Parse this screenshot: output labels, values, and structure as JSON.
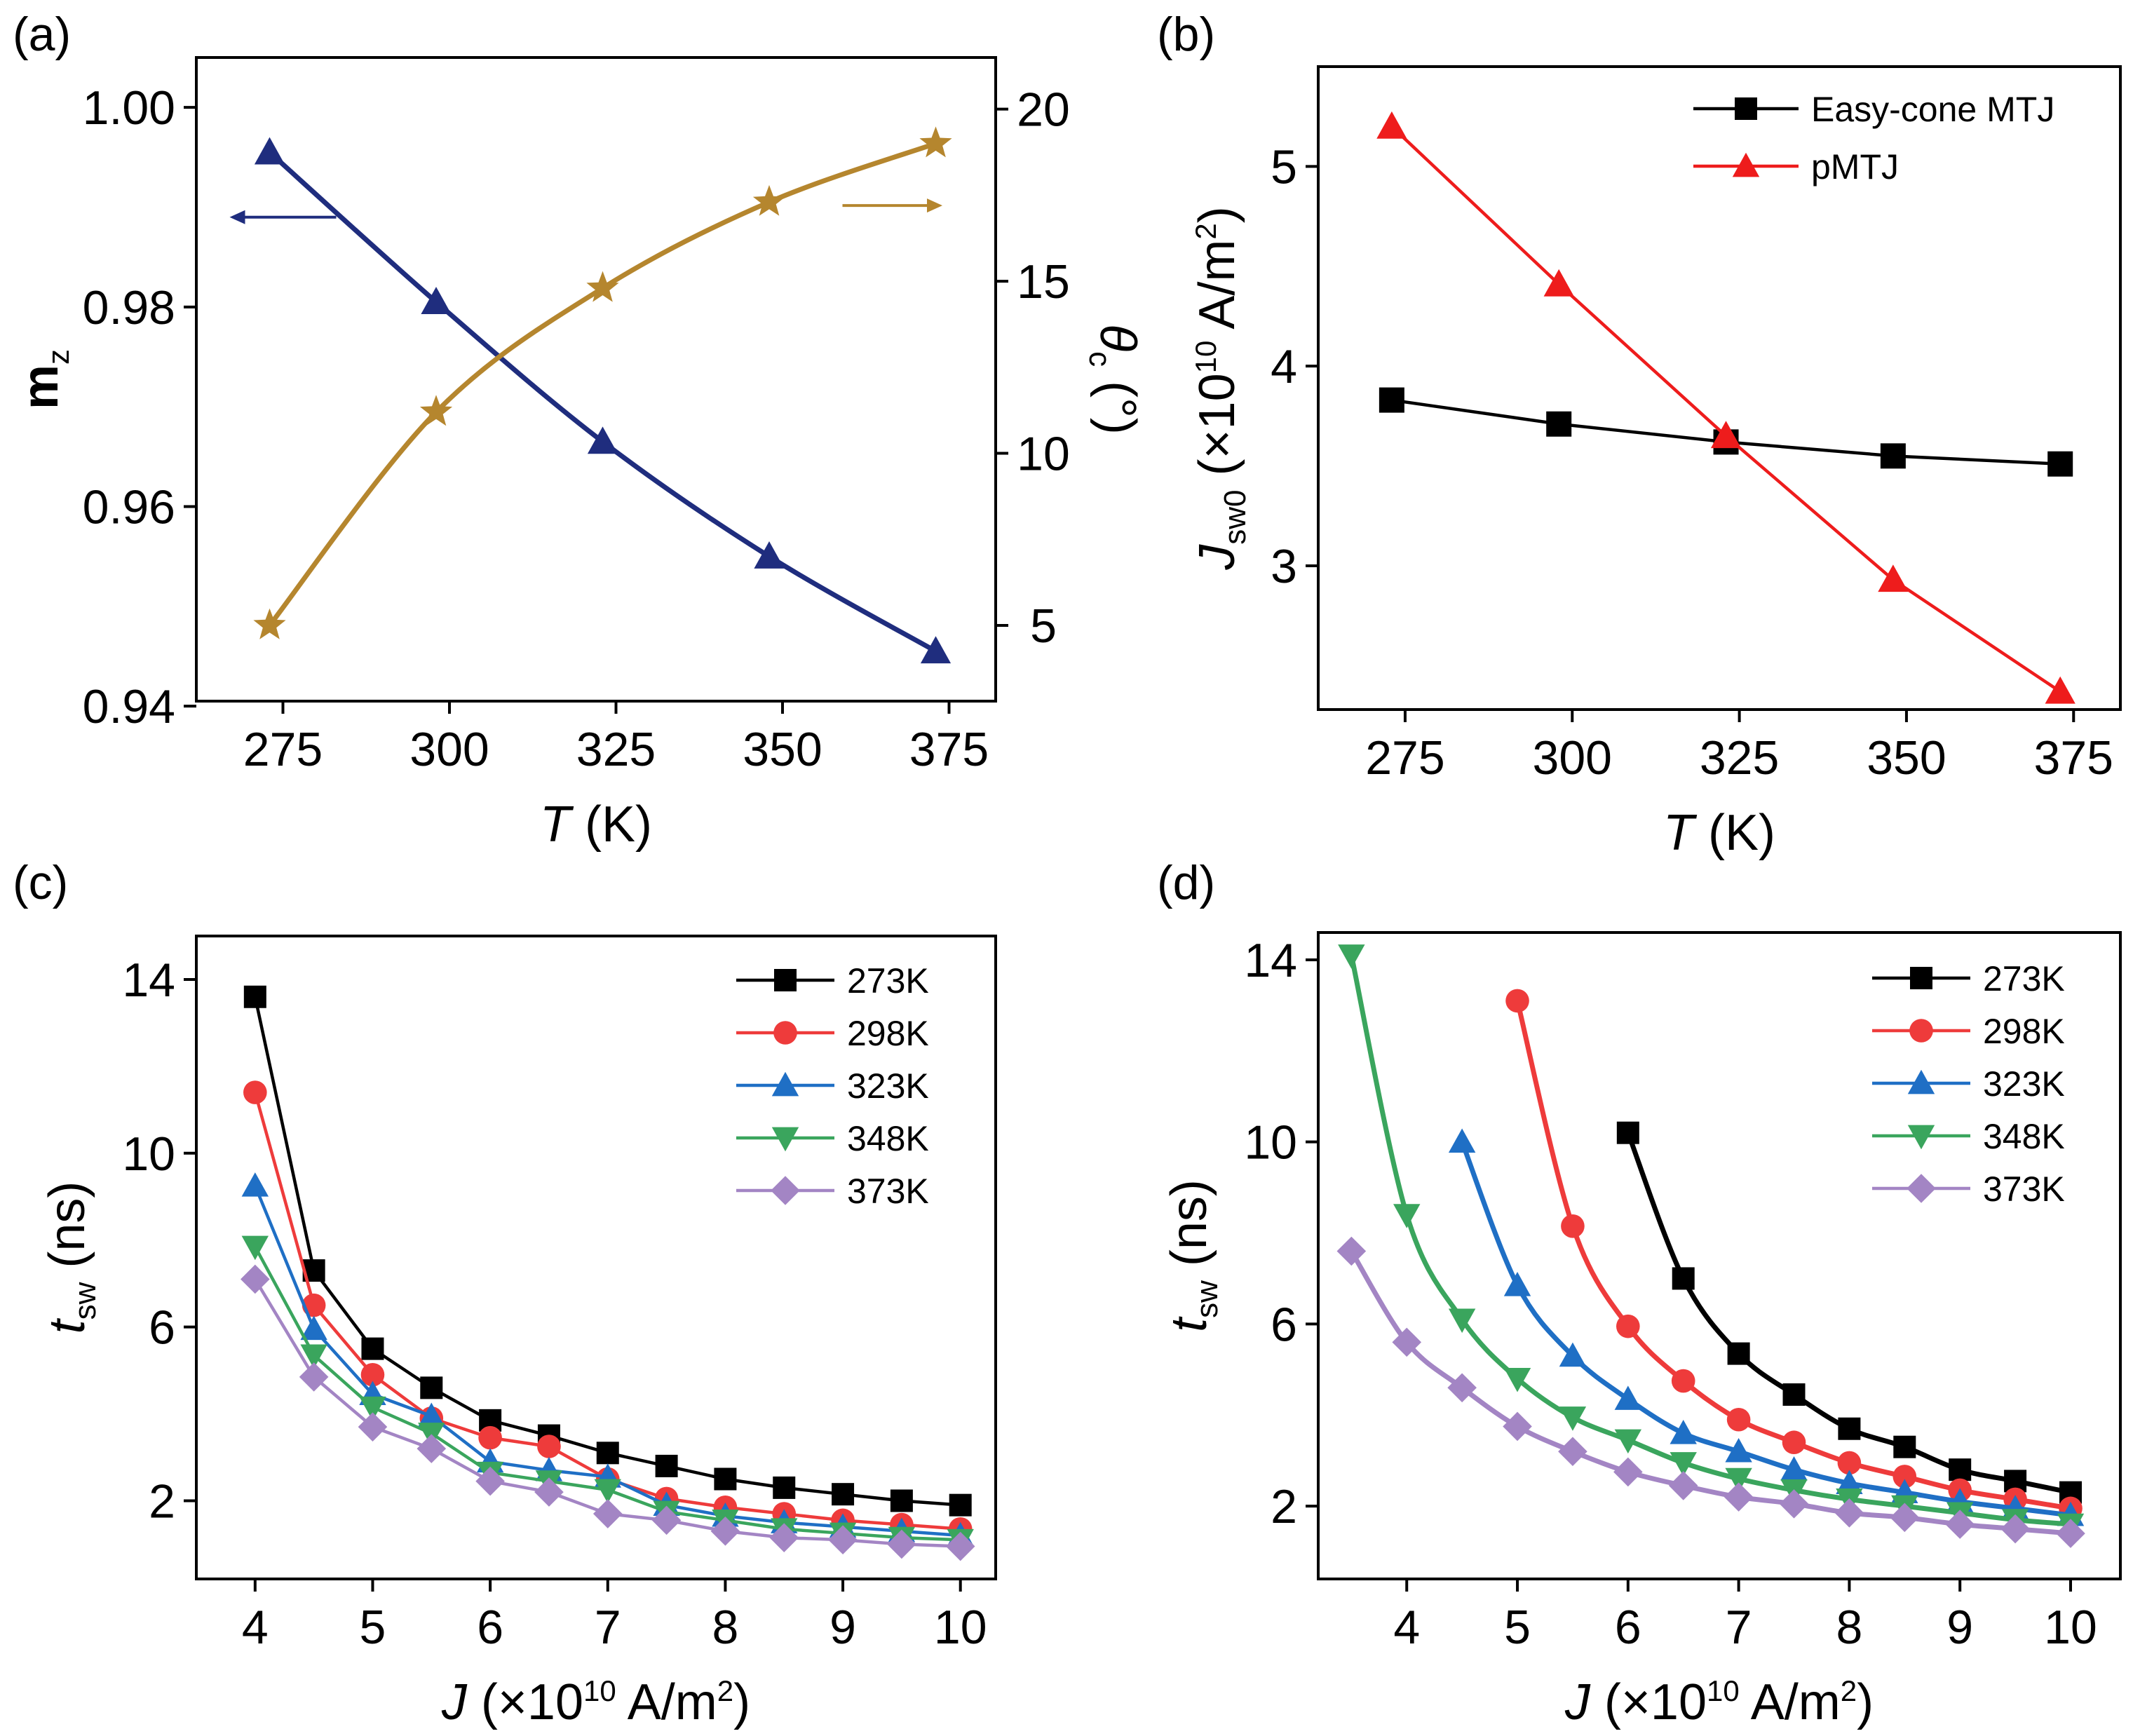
{
  "chart_data": [
    {
      "id": "a",
      "panel_label": "(a)",
      "type": "line",
      "xlabel": {
        "italic": "T",
        "rest": " (K)"
      },
      "ylabel_left": {
        "main": "m",
        "sub": "z"
      },
      "ylabel_right": {
        "italic": "θ",
        "sub": "c",
        "rest": " (°)"
      },
      "xlim": [
        262,
        382
      ],
      "ylim": [
        0.9405,
        1.005
      ],
      "y2lim": [
        2.8,
        21.5
      ],
      "xticks": [
        "275",
        "300",
        "325",
        "350",
        "375"
      ],
      "xtick_values": [
        275,
        300,
        325,
        350,
        375
      ],
      "yticks": [
        "0.94",
        "0.96",
        "0.98",
        "1.00"
      ],
      "ytick_values": [
        0.94,
        0.96,
        0.98,
        1.0
      ],
      "y2ticks": [
        "5",
        "10",
        "15",
        "20"
      ],
      "y2tick_values": [
        5,
        10,
        15,
        20
      ],
      "grid": false,
      "series": [
        {
          "name": "mz",
          "axis": "left",
          "color": "#1f2d7e",
          "marker": "triangle-up",
          "smooth": true,
          "x": [
            273,
            298,
            323,
            348,
            373
          ],
          "values": [
            0.9955,
            0.9805,
            0.9665,
            0.955,
            0.9455
          ]
        },
        {
          "name": "θc",
          "axis": "right",
          "color": "#b5862e",
          "marker": "star",
          "smooth": true,
          "x": [
            273,
            298,
            323,
            348,
            373
          ],
          "values": [
            5.0,
            11.2,
            14.8,
            17.3,
            19.0
          ]
        }
      ],
      "annotations": [
        {
          "name": "left-arrow",
          "direction": "left",
          "color": "#1f2d7e",
          "x_from": 283,
          "x_to": 267,
          "y_axis": "left",
          "y": 0.989
        },
        {
          "name": "right-arrow",
          "direction": "right",
          "color": "#b5862e",
          "x_from": 359,
          "x_to": 374,
          "y_axis": "right",
          "y": 17.2
        }
      ]
    },
    {
      "id": "b",
      "panel_label": "(b)",
      "type": "line",
      "xlabel": {
        "italic": "T",
        "rest": " (K)"
      },
      "ylabel_left": {
        "italic": "J",
        "sub": "sw0",
        "rest": " (×10",
        "sup": "10",
        "rest2": " A/m",
        "sup2": "2",
        "rest3": ")"
      },
      "xlim": [
        262,
        382
      ],
      "ylim": [
        2.28,
        5.5
      ],
      "xticks": [
        "275",
        "300",
        "325",
        "350",
        "375"
      ],
      "xtick_values": [
        275,
        300,
        325,
        350,
        375
      ],
      "yticks": [
        "3",
        "4",
        "5"
      ],
      "ytick_values": [
        3,
        4,
        5
      ],
      "grid": false,
      "legend": {
        "position": "top-right",
        "entries": [
          "Easy-cone MTJ",
          "pMTJ"
        ]
      },
      "series": [
        {
          "name": "Easy-cone MTJ",
          "color": "#000000",
          "marker": "square",
          "x": [
            273,
            298,
            323,
            348,
            373
          ],
          "values": [
            3.83,
            3.71,
            3.62,
            3.55,
            3.51
          ]
        },
        {
          "name": "pMTJ",
          "color": "#ee1c1c",
          "marker": "triangle-up",
          "x": [
            273,
            298,
            323,
            348,
            373
          ],
          "values": [
            5.2,
            4.41,
            3.65,
            2.93,
            2.37
          ]
        }
      ]
    },
    {
      "id": "c",
      "panel_label": "(c)",
      "type": "line",
      "xlabel": {
        "italic": "J",
        "rest": " (×10",
        "sup": "10",
        "rest2": " A/m",
        "sup2": "2",
        "rest3": ")"
      },
      "ylabel_left": {
        "italic": "t",
        "sub": "sw",
        "rest": " (ns)"
      },
      "xlim": [
        3.5,
        10.3
      ],
      "ylim": [
        0.2,
        15.0
      ],
      "xticks": [
        "4",
        "5",
        "6",
        "7",
        "8",
        "9",
        "10"
      ],
      "xtick_values": [
        4,
        5,
        6,
        7,
        8,
        9,
        10
      ],
      "yticks": [
        "2",
        "6",
        "10",
        "14"
      ],
      "ytick_values": [
        2,
        6,
        10,
        14
      ],
      "grid": false,
      "legend": {
        "position": "top-right",
        "entries": [
          "273K",
          "298K",
          "323K",
          "348K",
          "373K"
        ]
      },
      "series": [
        {
          "name": "273K",
          "color": "#000000",
          "marker": "square",
          "x": [
            4,
            4.5,
            5,
            5.5,
            6,
            6.5,
            7,
            7.5,
            8,
            8.5,
            9,
            9.5,
            10
          ],
          "values": [
            13.6,
            7.3,
            5.5,
            4.6,
            3.85,
            3.5,
            3.1,
            2.8,
            2.5,
            2.3,
            2.15,
            2.0,
            1.9
          ]
        },
        {
          "name": "298K",
          "color": "#ee3b3b",
          "marker": "circle",
          "x": [
            4,
            4.5,
            5,
            5.5,
            6,
            6.5,
            7,
            7.5,
            8,
            8.5,
            9,
            9.5,
            10
          ],
          "values": [
            11.4,
            6.5,
            4.9,
            3.9,
            3.45,
            3.25,
            2.5,
            2.05,
            1.85,
            1.7,
            1.55,
            1.45,
            1.35
          ]
        },
        {
          "name": "323K",
          "color": "#1f6fc5",
          "marker": "triangle-up",
          "x": [
            4,
            4.5,
            5,
            5.5,
            6,
            6.5,
            7,
            7.5,
            8,
            8.5,
            9,
            9.5,
            10
          ],
          "values": [
            9.25,
            5.95,
            4.45,
            3.95,
            2.9,
            2.7,
            2.55,
            1.9,
            1.65,
            1.5,
            1.4,
            1.3,
            1.2
          ]
        },
        {
          "name": "348K",
          "color": "#3aa55d",
          "marker": "triangle-down",
          "x": [
            4,
            4.5,
            5,
            5.5,
            6,
            6.5,
            7,
            7.5,
            8,
            8.5,
            9,
            9.5,
            10
          ],
          "values": [
            7.85,
            5.35,
            4.15,
            3.55,
            2.65,
            2.45,
            2.25,
            1.75,
            1.55,
            1.35,
            1.25,
            1.15,
            1.1
          ]
        },
        {
          "name": "373K",
          "color": "#a385c4",
          "marker": "diamond",
          "x": [
            4,
            4.5,
            5,
            5.5,
            6,
            6.5,
            7,
            7.5,
            8,
            8.5,
            9,
            9.5,
            10
          ],
          "values": [
            7.1,
            4.85,
            3.7,
            3.2,
            2.45,
            2.2,
            1.7,
            1.55,
            1.3,
            1.15,
            1.1,
            1.0,
            0.95
          ]
        }
      ]
    },
    {
      "id": "d",
      "panel_label": "(d)",
      "type": "line",
      "xlabel": {
        "italic": "J",
        "rest": " (×10",
        "sup": "10",
        "rest2": " A/m",
        "sup2": "2",
        "rest3": ")"
      },
      "ylabel_left": {
        "italic": "t",
        "sub": "sw",
        "rest": " (ns)"
      },
      "xlim": [
        3.2,
        10.45
      ],
      "ylim": [
        0.4,
        14.6
      ],
      "xticks": [
        "4",
        "5",
        "6",
        "7",
        "8",
        "9",
        "10"
      ],
      "xtick_values": [
        4,
        5,
        6,
        7,
        8,
        9,
        10
      ],
      "yticks": [
        "2",
        "6",
        "10",
        "14"
      ],
      "ytick_values": [
        2,
        6,
        10,
        14
      ],
      "grid": false,
      "legend": {
        "position": "top-right",
        "entries": [
          "273K",
          "298K",
          "323K",
          "348K",
          "373K"
        ]
      },
      "series": [
        {
          "name": "273K",
          "color": "#000000",
          "marker": "square",
          "smooth": true,
          "x": [
            6,
            6.5,
            7,
            7.5,
            8,
            8.5,
            9,
            9.5,
            10
          ],
          "values": [
            10.2,
            7.0,
            5.35,
            4.45,
            3.7,
            3.3,
            2.8,
            2.55,
            2.3
          ]
        },
        {
          "name": "298K",
          "color": "#ee3b3b",
          "marker": "circle",
          "smooth": true,
          "x": [
            5,
            5.5,
            6,
            6.5,
            7,
            7.5,
            8,
            8.5,
            9,
            9.5,
            10
          ],
          "values": [
            13.1,
            8.15,
            5.95,
            4.75,
            3.9,
            3.4,
            2.95,
            2.65,
            2.35,
            2.15,
            1.95
          ]
        },
        {
          "name": "323K",
          "color": "#1f6fc5",
          "marker": "triangle-up",
          "smooth": true,
          "x": [
            4.5,
            5,
            5.5,
            6,
            6.5,
            7,
            7.5,
            8,
            8.5,
            9,
            9.5,
            10
          ],
          "values": [
            10.0,
            6.85,
            5.3,
            4.35,
            3.6,
            3.2,
            2.8,
            2.5,
            2.3,
            2.1,
            1.95,
            1.8
          ]
        },
        {
          "name": "348K",
          "color": "#3aa55d",
          "marker": "triangle-down",
          "smooth": true,
          "x": [
            3.5,
            4,
            4.5,
            5,
            5.5,
            6,
            6.5,
            7,
            7.5,
            8,
            8.5,
            9,
            9.5,
            10
          ],
          "values": [
            14.1,
            8.4,
            6.1,
            4.8,
            3.95,
            3.45,
            2.95,
            2.6,
            2.35,
            2.15,
            2.0,
            1.85,
            1.7,
            1.6
          ]
        },
        {
          "name": "373K",
          "color": "#a385c4",
          "marker": "diamond",
          "smooth": true,
          "x": [
            3.5,
            4,
            4.5,
            5,
            5.5,
            6,
            6.5,
            7,
            7.5,
            8,
            8.5,
            9,
            9.5,
            10
          ],
          "values": [
            7.6,
            5.6,
            4.6,
            3.75,
            3.2,
            2.75,
            2.45,
            2.2,
            2.05,
            1.85,
            1.75,
            1.6,
            1.5,
            1.4
          ]
        }
      ]
    }
  ]
}
